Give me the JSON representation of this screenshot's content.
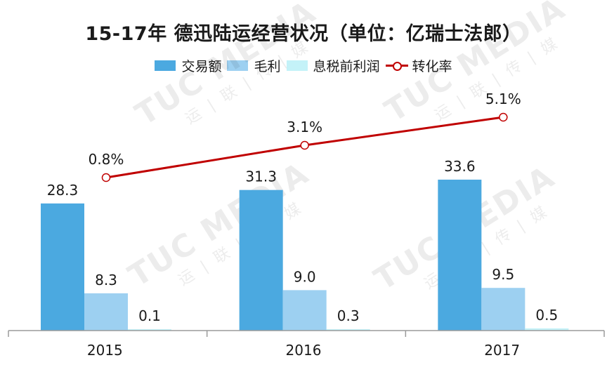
{
  "title": "15-17年 德迅陆运经营状况（单位：亿瑞士法郎）",
  "legend": [
    {
      "label": "交易额",
      "type": "bar",
      "color": "#4BA9E0"
    },
    {
      "label": "毛利",
      "type": "bar",
      "color": "#9DD0F1"
    },
    {
      "label": "息税前利润",
      "type": "bar",
      "color": "#C4F2F8"
    },
    {
      "label": "转化率",
      "type": "line",
      "color": "#C00000"
    }
  ],
  "watermark": {
    "text": "TUC MEDIA",
    "subtext": "运 | 联 | 传 | 媒"
  },
  "chart_data": {
    "type": "bar",
    "title": "15-17年 德迅陆运经营状况（单位：亿瑞士法郎）",
    "categories": [
      "2015",
      "2016",
      "2017"
    ],
    "series": [
      {
        "name": "交易额",
        "type": "bar",
        "values": [
          28.3,
          31.3,
          33.6
        ],
        "labels": [
          "28.3",
          "31.3",
          "33.6"
        ],
        "color": "#4BA9E0"
      },
      {
        "name": "毛利",
        "type": "bar",
        "values": [
          8.3,
          9.0,
          9.5
        ],
        "labels": [
          "8.3",
          "9.0",
          "9.5"
        ],
        "color": "#9DD0F1"
      },
      {
        "name": "息税前利润",
        "type": "bar",
        "values": [
          0.1,
          0.3,
          0.5
        ],
        "labels": [
          "0.1",
          "0.3",
          "0.5"
        ],
        "color": "#C4F2F8"
      },
      {
        "name": "转化率",
        "type": "line",
        "axis": "secondary",
        "values": [
          0.8,
          3.1,
          5.1
        ],
        "labels": [
          "0.8%",
          "3.1%",
          "5.1%"
        ],
        "color": "#C00000"
      }
    ],
    "xlabel": "",
    "ylabel": "",
    "grid": false,
    "legend_position": "top"
  }
}
